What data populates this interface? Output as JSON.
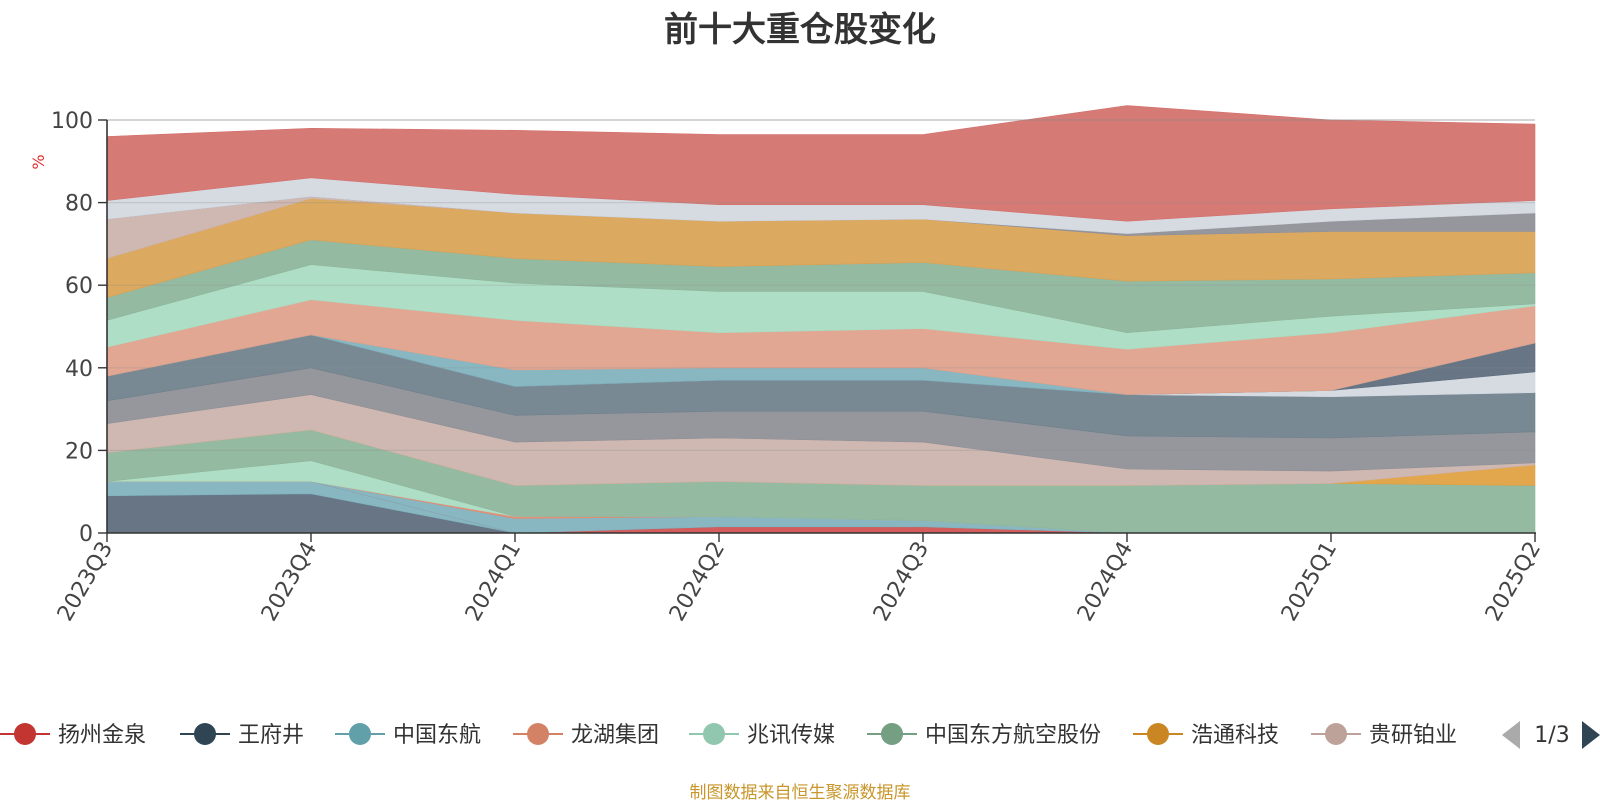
{
  "title": "前十大重仓股变化",
  "source": "制图数据来自恒生聚源数据库",
  "chart_data": {
    "type": "area",
    "stacked": true,
    "title": "前十大重仓股变化",
    "ylabel": "%",
    "ylabel_color": "#e03030",
    "ylim": [
      0,
      100
    ],
    "yticks": [
      "0",
      "20",
      "40",
      "60",
      "80",
      "100"
    ],
    "categories": [
      "2023Q3",
      "2023Q4",
      "2024Q1",
      "2024Q2",
      "2024Q3",
      "2024Q4",
      "2025Q1",
      "2025Q2"
    ],
    "series": [
      {
        "name": "",
        "color": "#5b6b7c",
        "values": [
          9,
          9.5,
          0,
          0,
          0,
          0,
          0,
          0
        ]
      },
      {
        "name": "",
        "color": "#7fb2bd",
        "values": [
          3.5,
          3,
          0,
          0,
          0,
          0,
          0,
          0
        ]
      },
      {
        "name": "",
        "color": "#d05050",
        "values": [
          0,
          0,
          0,
          1.5,
          1.5,
          0,
          0,
          0
        ]
      },
      {
        "name": "",
        "color": "#7fb2bd",
        "values": [
          0,
          0,
          3.5,
          2.5,
          1.5,
          0,
          0,
          0
        ]
      },
      {
        "name": "",
        "color": "#e08a70",
        "values": [
          0,
          0,
          0.5,
          0,
          0,
          0,
          0,
          0
        ]
      },
      {
        "name": "",
        "color": "#a9dcc2",
        "values": [
          0,
          5,
          0,
          0,
          0,
          0,
          0,
          0
        ]
      },
      {
        "name": "",
        "color": "#8db59b",
        "values": [
          7,
          7.5,
          7.5,
          8.5,
          8.5,
          11.5,
          12,
          11.5
        ]
      },
      {
        "name": "",
        "color": "#e0a040",
        "values": [
          0,
          0,
          0,
          0,
          0,
          0,
          0,
          5
        ]
      },
      {
        "name": "",
        "color": "#cbb3ab",
        "values": [
          7,
          8.5,
          10.5,
          10.5,
          10.5,
          4,
          3,
          0.5
        ]
      },
      {
        "name": "",
        "color": "#8e8f96",
        "values": [
          5.5,
          6.5,
          6.5,
          6.5,
          7.5,
          8,
          8,
          7.5
        ]
      },
      {
        "name": "",
        "color": "#6f808c",
        "values": [
          6,
          8,
          7,
          7.5,
          7.5,
          10,
          10,
          9.5
        ]
      },
      {
        "name": "",
        "color": "#d3d8e0",
        "values": [
          0,
          0,
          0,
          0,
          0,
          0,
          1.5,
          5
        ]
      },
      {
        "name": "",
        "color": "#5b6b7c",
        "values": [
          0,
          0,
          0,
          0,
          0,
          0,
          0,
          7
        ]
      },
      {
        "name": "",
        "color": "#7fb2bd",
        "values": [
          0,
          0,
          4,
          3,
          3,
          0,
          0,
          0
        ]
      },
      {
        "name": "",
        "color": "#e0a08a",
        "values": [
          7,
          8.5,
          12,
          8.5,
          9.5,
          11,
          14,
          9
        ]
      },
      {
        "name": "",
        "color": "#a9dcc2",
        "values": [
          6.5,
          8.5,
          9,
          10,
          9,
          4,
          4,
          0.5
        ]
      },
      {
        "name": "",
        "color": "#8db59b",
        "values": [
          5.5,
          6,
          6,
          6,
          7,
          12.5,
          9,
          7.5
        ]
      },
      {
        "name": "",
        "color": "#d9a254",
        "values": [
          9.5,
          10,
          11,
          11,
          10.5,
          11,
          11.5,
          10
        ]
      },
      {
        "name": "",
        "color": "#cbb3ab",
        "values": [
          9.5,
          0.5,
          0,
          0,
          0,
          0,
          0,
          0
        ]
      },
      {
        "name": "",
        "color": "#8e8f96",
        "values": [
          0,
          0,
          0,
          0,
          0,
          0.5,
          2.5,
          4.5
        ]
      },
      {
        "name": "",
        "color": "#d3d8e0",
        "values": [
          4.5,
          4.5,
          4.5,
          4,
          3.5,
          3,
          3,
          3
        ]
      },
      {
        "name": "",
        "color": "#d3706c",
        "values": [
          15.5,
          12,
          15.5,
          17,
          17,
          28,
          21.5,
          18.5
        ]
      }
    ],
    "legend": {
      "position": "bottom",
      "page": "1/3",
      "items": [
        {
          "label": "扬州金泉",
          "color": "#c23531"
        },
        {
          "label": "王府井",
          "color": "#2f4554"
        },
        {
          "label": "中国东航",
          "color": "#61a0a8"
        },
        {
          "label": "龙湖集团",
          "color": "#d48265"
        },
        {
          "label": "兆讯传媒",
          "color": "#91c7ae"
        },
        {
          "label": "中国东方航空股份",
          "color": "#749f83"
        },
        {
          "label": "浩通科技",
          "color": "#ca8622"
        },
        {
          "label": "贵研铂业",
          "color": "#bda29a"
        }
      ]
    },
    "grid": true
  }
}
